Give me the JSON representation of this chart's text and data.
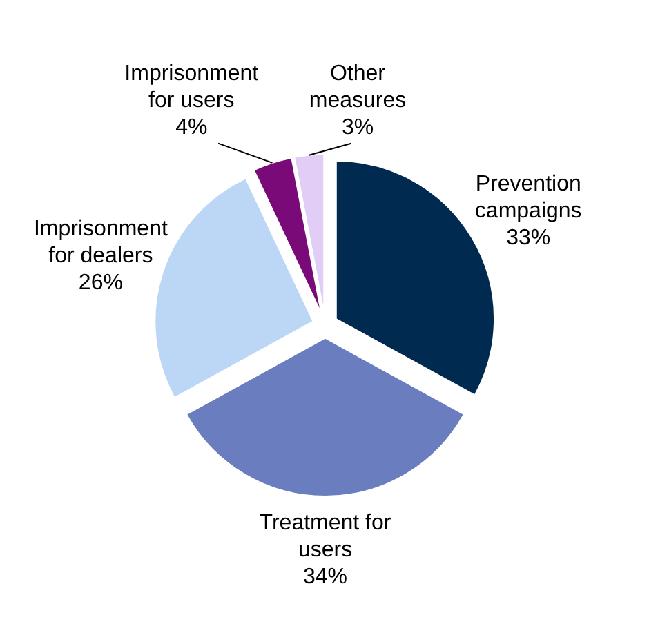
{
  "chart_data": {
    "type": "pie",
    "categories": [
      "Prevention campaigns",
      "Treatment for users",
      "Imprisonment for dealers",
      "Imprisonment for users",
      "Other measures"
    ],
    "values": [
      33,
      34,
      26,
      4,
      3
    ],
    "colors": [
      "#002a50",
      "#6a7dbf",
      "#bcd7f6",
      "#7a0a78",
      "#e2cdf6"
    ],
    "value_labels": [
      "33%",
      "34%",
      "26%",
      "4%",
      "3%"
    ]
  }
}
